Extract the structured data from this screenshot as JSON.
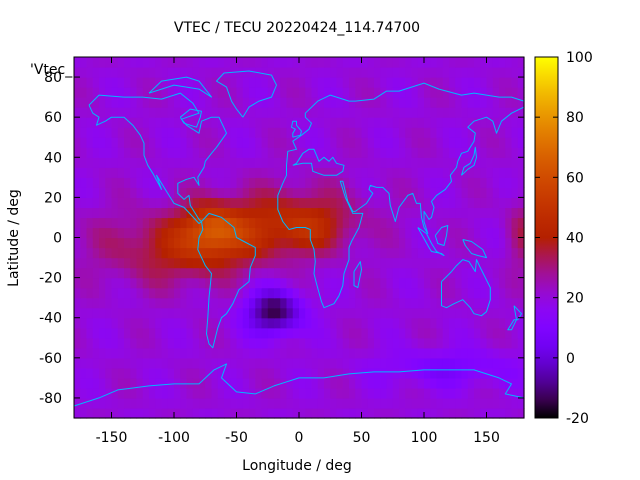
{
  "chart_data": {
    "type": "heatmap",
    "title": "VTEC / TECU 20220424_114.74700",
    "xlabel": "Longitude / deg",
    "ylabel": "Latitude / deg",
    "key_label": "'Vtec_",
    "xlim": [
      -180,
      180
    ],
    "ylim": [
      -90,
      90
    ],
    "xticks": [
      -150,
      -100,
      -50,
      0,
      50,
      100,
      150
    ],
    "yticks": [
      -80,
      -60,
      -40,
      -20,
      0,
      20,
      40,
      60,
      80
    ],
    "xtick_labels": [
      "-150",
      "-100",
      "-50",
      "0",
      "50",
      "100",
      "150"
    ],
    "ytick_labels": [
      "-80",
      "-60",
      "-40",
      "-20",
      "0",
      "20",
      "40",
      "60",
      "80"
    ],
    "colorbar": {
      "range": [
        -20,
        100
      ],
      "ticks": [
        -20,
        0,
        20,
        40,
        60,
        80,
        100
      ],
      "tick_labels": [
        "-20",
        "0",
        "20",
        "40",
        "60",
        "80",
        "100"
      ],
      "palette": "gnuplot rgbformulae 7,5,15 (black-purple-red-orange-yellow)"
    },
    "features": [
      {
        "name": "equatorial anomaly band",
        "lon_range": [
          -180,
          50
        ],
        "lat_range": [
          -35,
          30
        ],
        "vtec_range": [
          40,
          75
        ]
      },
      {
        "name": "daytime maximum",
        "lon": -70,
        "lat": 5,
        "vtec": 75
      },
      {
        "name": "South Atlantic minimum",
        "lon": -20,
        "lat": -37,
        "vtec": -15
      },
      {
        "name": "background level",
        "vtec": 20
      },
      {
        "name": "southern high-latitude low",
        "lon_range": [
          80,
          180
        ],
        "lat_range": [
          -75,
          -55
        ],
        "vtec": 8
      }
    ],
    "overlay": "continent coastlines (cyan)"
  }
}
